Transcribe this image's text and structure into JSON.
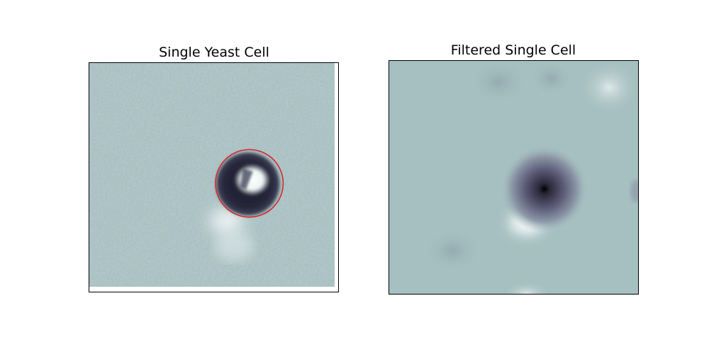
{
  "figure": {
    "panels": [
      {
        "title": "Single Yeast Cell",
        "background_color": "#a3bcbe",
        "annotation": {
          "shape": "circle",
          "color": "#d62728"
        }
      },
      {
        "title": "Filtered Single Cell",
        "background_color": "#a3bcbe"
      }
    ]
  }
}
